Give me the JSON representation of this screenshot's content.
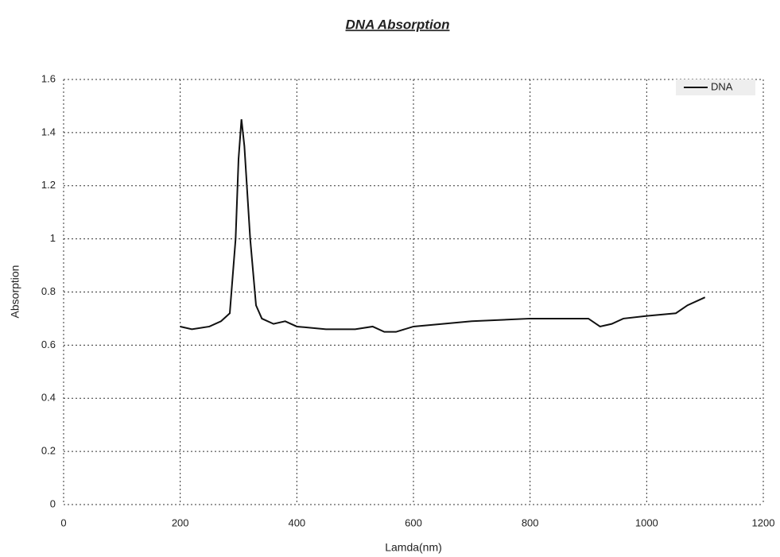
{
  "chart_data": {
    "type": "line",
    "title": "DNA Absorption",
    "x_label": "Lamda(nm)",
    "y_label": "Absorption",
    "x": [
      200,
      220,
      250,
      270,
      285,
      295,
      300,
      305,
      310,
      320,
      330,
      340,
      360,
      380,
      400,
      450,
      500,
      530,
      550,
      570,
      600,
      700,
      800,
      900,
      920,
      940,
      960,
      1000,
      1050,
      1070,
      1090,
      1100
    ],
    "series": [
      {
        "name": "DNA",
        "color": "#111111",
        "values": [
          0.67,
          0.66,
          0.67,
          0.69,
          0.72,
          1.0,
          1.3,
          1.45,
          1.35,
          1.0,
          0.75,
          0.7,
          0.68,
          0.69,
          0.67,
          0.66,
          0.66,
          0.67,
          0.65,
          0.65,
          0.67,
          0.69,
          0.7,
          0.7,
          0.67,
          0.68,
          0.7,
          0.71,
          0.72,
          0.75,
          0.77,
          0.78
        ]
      }
    ],
    "xlim": [
      0,
      1200
    ],
    "xticks": [
      0,
      200,
      400,
      600,
      800,
      1000,
      1200
    ],
    "ylim": [
      0,
      1.6
    ],
    "yticks": [
      0,
      0.2,
      0.4,
      0.6,
      0.8,
      1,
      1.2,
      1.4,
      1.6
    ],
    "grid": true,
    "legend": "top-right"
  }
}
